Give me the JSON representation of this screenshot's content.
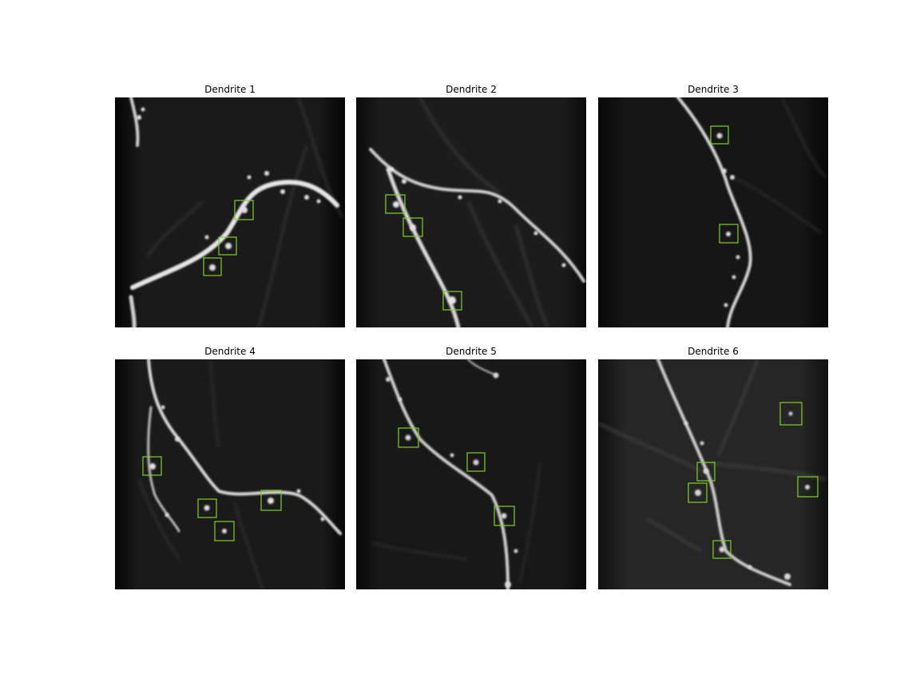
{
  "figure": {
    "panels": [
      {
        "title": "Dendrite 1",
        "detection_count": 3,
        "box_color": "#7ed321"
      },
      {
        "title": "Dendrite 2",
        "detection_count": 3,
        "box_color": "#7ed321"
      },
      {
        "title": "Dendrite 3",
        "detection_count": 2,
        "box_color": "#7ed321"
      },
      {
        "title": "Dendrite 4",
        "detection_count": 4,
        "box_color": "#7ed321"
      },
      {
        "title": "Dendrite 5",
        "detection_count": 3,
        "box_color": "#7ed321"
      },
      {
        "title": "Dendrite 6",
        "detection_count": 5,
        "box_color": "#7ed321"
      }
    ],
    "colors": {
      "background": "#ffffff",
      "image_dark": "#141414",
      "dendrite": "#d9d9d9",
      "box": "#7ed321"
    }
  }
}
